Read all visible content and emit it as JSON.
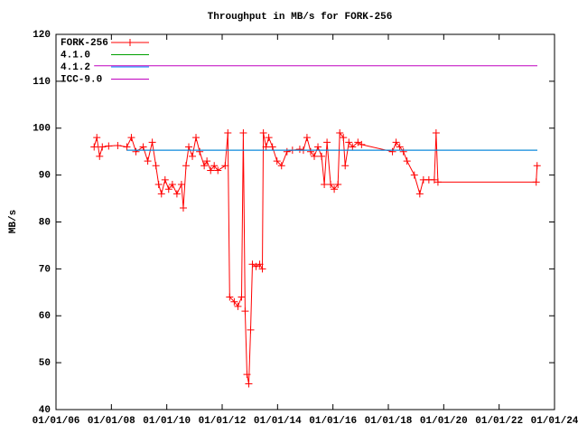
{
  "chart_data": {
    "type": "line",
    "title": "Throughput in MB/s for FORK-256",
    "ylabel": "MB/s",
    "xlim": [
      "01/01/06",
      "01/01/24"
    ],
    "xticks": [
      "01/01/06",
      "01/01/08",
      "01/01/10",
      "01/01/12",
      "01/01/14",
      "01/01/16",
      "01/01/18",
      "01/01/20",
      "01/01/22",
      "01/01/24"
    ],
    "ylim": [
      40,
      120
    ],
    "yticks": [
      40,
      50,
      60,
      70,
      80,
      90,
      100,
      110,
      120
    ],
    "legend": "top-left",
    "series": [
      {
        "name": "FORK-256",
        "color": "#ff0000",
        "marker": "plus",
        "x": [
          "05/17/07",
          "06/22/07",
          "07/28/07",
          "09/03/07",
          "11/26/07",
          "03/24/08",
          "07/22/08",
          "09/21/08",
          "11/20/08",
          "02/25/09",
          "04/24/09",
          "06/23/09",
          "08/10/09",
          "09/16/09",
          "10/22/09",
          "12/09/09",
          "01/26/10",
          "03/14/10",
          "05/13/10",
          "07/12/10",
          "08/06/10",
          "09/11/10",
          "10/17/10",
          "12/04/10",
          "01/21/11",
          "03/09/11",
          "05/08/11",
          "06/13/11",
          "08/01/11",
          "09/18/11",
          "11/05/11",
          "02/10/12",
          "03/15/12",
          "04/09/12",
          "06/08/12",
          "07/26/12",
          "09/13/12",
          "10/06/12",
          "10/30/12",
          "11/24/12",
          "12/17/12",
          "01/11/13",
          "02/04/13",
          "03/22/13",
          "05/09/13",
          "06/14/13",
          "06/27/13",
          "08/02/13",
          "09/07/13",
          "10/25/13",
          "12/24/13",
          "02/23/14",
          "05/04/14",
          "07/15/14",
          "10/20/14",
          "12/07/14",
          "01/24/15",
          "03/11/15",
          "04/29/15",
          "06/16/15",
          "08/03/15",
          "09/09/15",
          "10/14/15",
          "12/01/15",
          "01/18/16",
          "03/06/16",
          "03/30/16",
          "05/17/16",
          "06/10/16",
          "07/28/16",
          "09/15/16",
          "11/26/16",
          "01/13/17",
          "02/25/18",
          "04/12/18",
          "05/30/18",
          "07/17/18",
          "09/04/18",
          "12/09/18",
          "02/20/19",
          "04/07/19",
          "06/18/19",
          "08/29/19",
          "09/22/19",
          "10/16/19",
          "05/03/23",
          "05/15/23"
        ],
        "values": [
          96,
          98,
          94,
          96,
          96.2,
          96.3,
          96,
          98,
          95,
          96,
          93,
          97,
          92,
          88,
          86,
          89,
          87,
          88,
          86,
          88,
          83,
          92,
          96,
          94,
          98,
          95,
          92,
          93,
          91,
          92,
          91,
          92,
          99,
          64,
          63,
          62,
          64,
          99,
          61,
          47.5,
          45.5,
          57,
          71,
          70.5,
          71,
          70,
          99,
          96,
          98,
          96,
          93,
          92,
          95,
          95.3,
          95.5,
          95.3,
          98,
          95,
          94,
          96,
          94,
          88,
          97,
          88,
          87,
          88,
          99,
          98,
          92,
          97,
          96,
          97,
          96.5,
          95,
          97,
          96,
          95,
          93,
          90,
          86,
          89,
          89,
          89,
          99,
          88.5,
          88.5,
          92
        ]
      },
      {
        "name": "4.1.0",
        "color": "#00a000",
        "x": [
          "07/22/08",
          "05/18/23"
        ],
        "values": [
          95.3,
          95.3
        ]
      },
      {
        "name": "4.1.2",
        "color": "#0080ff",
        "x": [
          "07/22/08",
          "05/18/23"
        ],
        "values": [
          95.3,
          95.3
        ]
      },
      {
        "name": "ICC-9.0",
        "color": "#c000c0",
        "x": [
          "05/17/07",
          "05/18/23"
        ],
        "values": [
          113.3,
          113.3
        ]
      }
    ]
  }
}
